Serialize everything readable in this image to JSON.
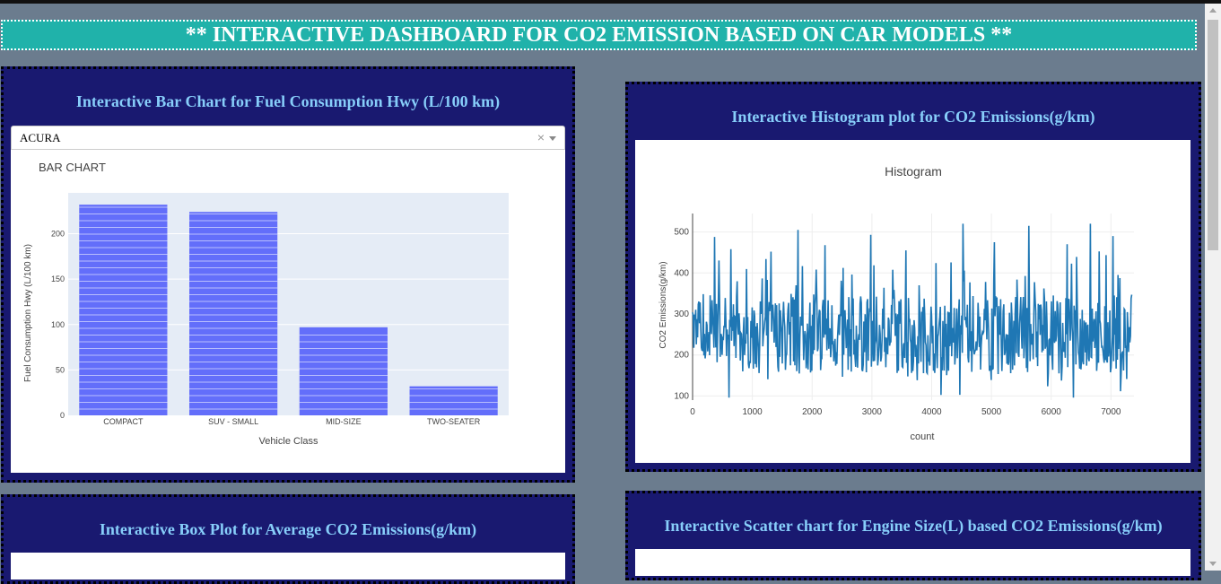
{
  "header": {
    "title": "** INTERACTIVE DASHBOARD FOR CO2 EMISSION BASED ON CAR MODELS **"
  },
  "bar_panel": {
    "title": "Interactive Bar Chart for Fuel Consumption Hwy (L/100 km)",
    "dropdown": {
      "value": "ACURA",
      "clear_glyph": "×"
    }
  },
  "hist_panel": {
    "title": "Interactive Histogram plot for CO2 Emissions(g/km)"
  },
  "box_panel": {
    "title": "Interactive Box Plot for Average CO2 Emissions(g/km)"
  },
  "scatter_panel": {
    "title": "Interactive Scatter chart for Engine Size(L) based CO2 Emissions(g/km)"
  },
  "colors": {
    "bar": "#636efa",
    "line": "#1f77b4",
    "plot_bg": "#e5ecf6",
    "panel": "#191970",
    "header": "#20b2aa",
    "title": "#87cefa"
  },
  "chart_data": [
    {
      "type": "bar",
      "title": "BAR CHART",
      "xlabel": "Vehicle Class",
      "ylabel": "Fuel Consumption Hwy (L/100 km)",
      "categories": [
        "COMPACT",
        "SUV - SMALL",
        "MID-SIZE",
        "TWO-SEATER"
      ],
      "values": [
        232,
        224,
        97,
        32
      ],
      "ylim": [
        0,
        245
      ],
      "yticks": [
        0,
        50,
        100,
        150,
        200
      ],
      "grid": true
    },
    {
      "type": "line",
      "title": "Histogram",
      "xlabel": "count",
      "ylabel": "CO2 Emissions(g/km)",
      "xlim": [
        0,
        7385
      ],
      "ylim": [
        90,
        545
      ],
      "xticks": [
        0,
        1000,
        2000,
        3000,
        4000,
        5000,
        6000,
        7000
      ],
      "yticks": [
        100,
        200,
        300,
        400,
        500
      ],
      "grid": true,
      "approx_range": [
        96,
        522
      ],
      "peaks": [
        {
          "x": 370,
          "y": 488
        },
        {
          "x": 1310,
          "y": 452
        },
        {
          "x": 1760,
          "y": 505
        },
        {
          "x": 2210,
          "y": 468
        },
        {
          "x": 2980,
          "y": 493
        },
        {
          "x": 3570,
          "y": 455
        },
        {
          "x": 4520,
          "y": 520
        },
        {
          "x": 5050,
          "y": 475
        },
        {
          "x": 5630,
          "y": 515
        },
        {
          "x": 6270,
          "y": 470
        },
        {
          "x": 6660,
          "y": 520
        },
        {
          "x": 7030,
          "y": 490
        }
      ]
    }
  ]
}
